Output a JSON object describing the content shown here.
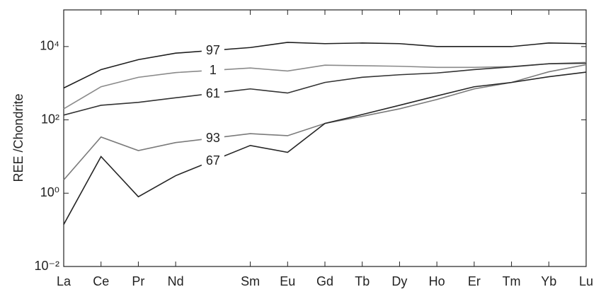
{
  "chart_data": {
    "type": "line",
    "y_label": "REE /Chondrite",
    "x": [
      57,
      58,
      59,
      60,
      62,
      63,
      64,
      65,
      66,
      67,
      68,
      69,
      70,
      71
    ],
    "xlim": [
      57,
      71
    ],
    "xticks": [
      {
        "value": 57,
        "label": "La"
      },
      {
        "value": 58,
        "label": "Ce"
      },
      {
        "value": 59,
        "label": "Pr"
      },
      {
        "value": 60,
        "label": "Nd"
      },
      {
        "value": 62,
        "label": "Sm"
      },
      {
        "value": 63,
        "label": "Eu"
      },
      {
        "value": 64,
        "label": "Gd"
      },
      {
        "value": 65,
        "label": "Tb"
      },
      {
        "value": 66,
        "label": "Dy"
      },
      {
        "value": 67,
        "label": "Ho"
      },
      {
        "value": 68,
        "label": "Er"
      },
      {
        "value": 69,
        "label": "Tm"
      },
      {
        "value": 70,
        "label": "Yb"
      },
      {
        "value": 71,
        "label": "Lu"
      }
    ],
    "log_y": true,
    "ylim": [
      0.01,
      100000
    ],
    "yticks": [
      {
        "value": 0.01,
        "label": "10⁻²"
      },
      {
        "value": 1,
        "label": "10⁰"
      },
      {
        "value": 100,
        "label": "10²"
      },
      {
        "value": 10000,
        "label": "10⁴"
      }
    ],
    "series": [
      {
        "name": "97",
        "color": "#1e1e1e",
        "values": [
          740,
          2350,
          4400,
          6600,
          9400,
          13000,
          12000,
          12500,
          12000,
          10000,
          10000,
          10000,
          12500,
          12000
        ]
      },
      {
        "name": "1",
        "color": "#8a8a8a",
        "values": [
          200,
          800,
          1450,
          1950,
          2600,
          2150,
          3100,
          3000,
          2900,
          2700,
          2700,
          2850,
          3400,
          3700
        ]
      },
      {
        "name": "61",
        "color": "#333333",
        "values": [
          135,
          250,
          300,
          400,
          700,
          540,
          1050,
          1450,
          1700,
          1900,
          2350,
          2800,
          3400,
          3500
        ]
      },
      {
        "name": "93",
        "color": "#7a7a7a",
        "values": [
          2.3,
          34,
          14.5,
          24,
          42,
          37,
          80,
          125,
          200,
          360,
          700,
          1050,
          2050,
          3200
        ]
      },
      {
        "name": "67",
        "color": "#262626",
        "values": [
          0.14,
          10,
          0.8,
          3,
          20,
          13,
          80,
          140,
          250,
          450,
          800,
          1050,
          1500,
          2000
        ]
      }
    ]
  }
}
